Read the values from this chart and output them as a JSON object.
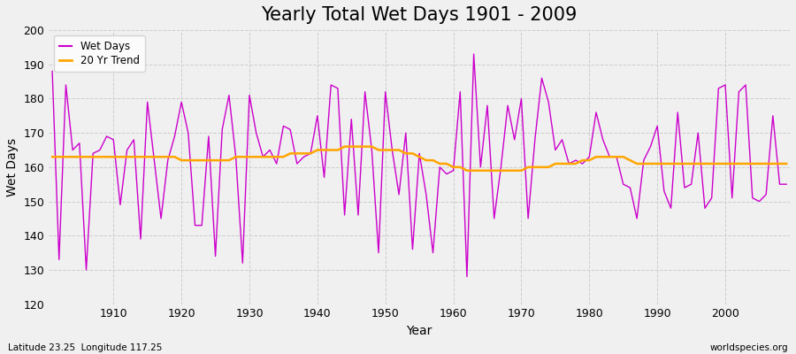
{
  "title": "Yearly Total Wet Days 1901 - 2009",
  "xlabel": "Year",
  "ylabel": "Wet Days",
  "years": [
    1901,
    1902,
    1903,
    1904,
    1905,
    1906,
    1907,
    1908,
    1909,
    1910,
    1911,
    1912,
    1913,
    1914,
    1915,
    1916,
    1917,
    1918,
    1919,
    1920,
    1921,
    1922,
    1923,
    1924,
    1925,
    1926,
    1927,
    1928,
    1929,
    1930,
    1931,
    1932,
    1933,
    1934,
    1935,
    1936,
    1937,
    1938,
    1939,
    1940,
    1941,
    1942,
    1943,
    1944,
    1945,
    1946,
    1947,
    1948,
    1949,
    1950,
    1951,
    1952,
    1953,
    1954,
    1955,
    1956,
    1957,
    1958,
    1959,
    1960,
    1961,
    1962,
    1963,
    1964,
    1965,
    1966,
    1967,
    1968,
    1969,
    1970,
    1971,
    1972,
    1973,
    1974,
    1975,
    1976,
    1977,
    1978,
    1979,
    1980,
    1981,
    1982,
    1983,
    1984,
    1985,
    1986,
    1987,
    1988,
    1989,
    1990,
    1991,
    1992,
    1993,
    1994,
    1995,
    1996,
    1997,
    1998,
    1999,
    2000,
    2001,
    2002,
    2003,
    2004,
    2005,
    2006,
    2007,
    2008,
    2009
  ],
  "wet_days": [
    188,
    133,
    184,
    165,
    167,
    130,
    164,
    165,
    169,
    168,
    149,
    165,
    168,
    139,
    179,
    162,
    145,
    162,
    169,
    179,
    170,
    143,
    143,
    169,
    134,
    171,
    181,
    163,
    132,
    181,
    170,
    163,
    165,
    161,
    172,
    171,
    161,
    163,
    164,
    175,
    157,
    184,
    183,
    146,
    174,
    146,
    182,
    165,
    135,
    182,
    165,
    152,
    170,
    136,
    164,
    152,
    135,
    160,
    158,
    159,
    182,
    128,
    193,
    160,
    178,
    145,
    160,
    178,
    168,
    180,
    145,
    168,
    186,
    179,
    165,
    168,
    161,
    162,
    161,
    163,
    176,
    168,
    163,
    163,
    155,
    154,
    145,
    162,
    166,
    172,
    153,
    148,
    176,
    154,
    155,
    170,
    148,
    151,
    183,
    184,
    151,
    182,
    184,
    151,
    150,
    152,
    175,
    155,
    155
  ],
  "trend": [
    163,
    163,
    163,
    163,
    163,
    163,
    163,
    163,
    163,
    163,
    163,
    163,
    163,
    163,
    163,
    163,
    163,
    163,
    163,
    162,
    162,
    162,
    162,
    162,
    162,
    162,
    162,
    163,
    163,
    163,
    163,
    163,
    163,
    163,
    163,
    164,
    164,
    164,
    164,
    165,
    165,
    165,
    165,
    166,
    166,
    166,
    166,
    166,
    165,
    165,
    165,
    165,
    164,
    164,
    163,
    162,
    162,
    161,
    161,
    160,
    160,
    159,
    159,
    159,
    159,
    159,
    159,
    159,
    159,
    159,
    160,
    160,
    160,
    160,
    161,
    161,
    161,
    161,
    162,
    162,
    163,
    163,
    163,
    163,
    163,
    162,
    161,
    161,
    161,
    161,
    161,
    161,
    161,
    161,
    161,
    161,
    161,
    161,
    161,
    161,
    161,
    161,
    161,
    161,
    161,
    161,
    161,
    161,
    161
  ],
  "line_color": "#CC00CC",
  "trend_color": "#FFA500",
  "bg_color": "#f0f0f0",
  "plot_bg_color": "#f0f0f0",
  "ylim": [
    120,
    200
  ],
  "yticks": [
    120,
    130,
    140,
    150,
    160,
    170,
    180,
    190,
    200
  ],
  "xticks": [
    1910,
    1920,
    1930,
    1940,
    1950,
    1960,
    1970,
    1980,
    1990,
    2000
  ],
  "grid_color": "#cccccc",
  "title_fontsize": 15,
  "label_fontsize": 10,
  "tick_fontsize": 9,
  "footer_left": "Latitude 23.25  Longitude 117.25",
  "footer_right": "worldspecies.org"
}
